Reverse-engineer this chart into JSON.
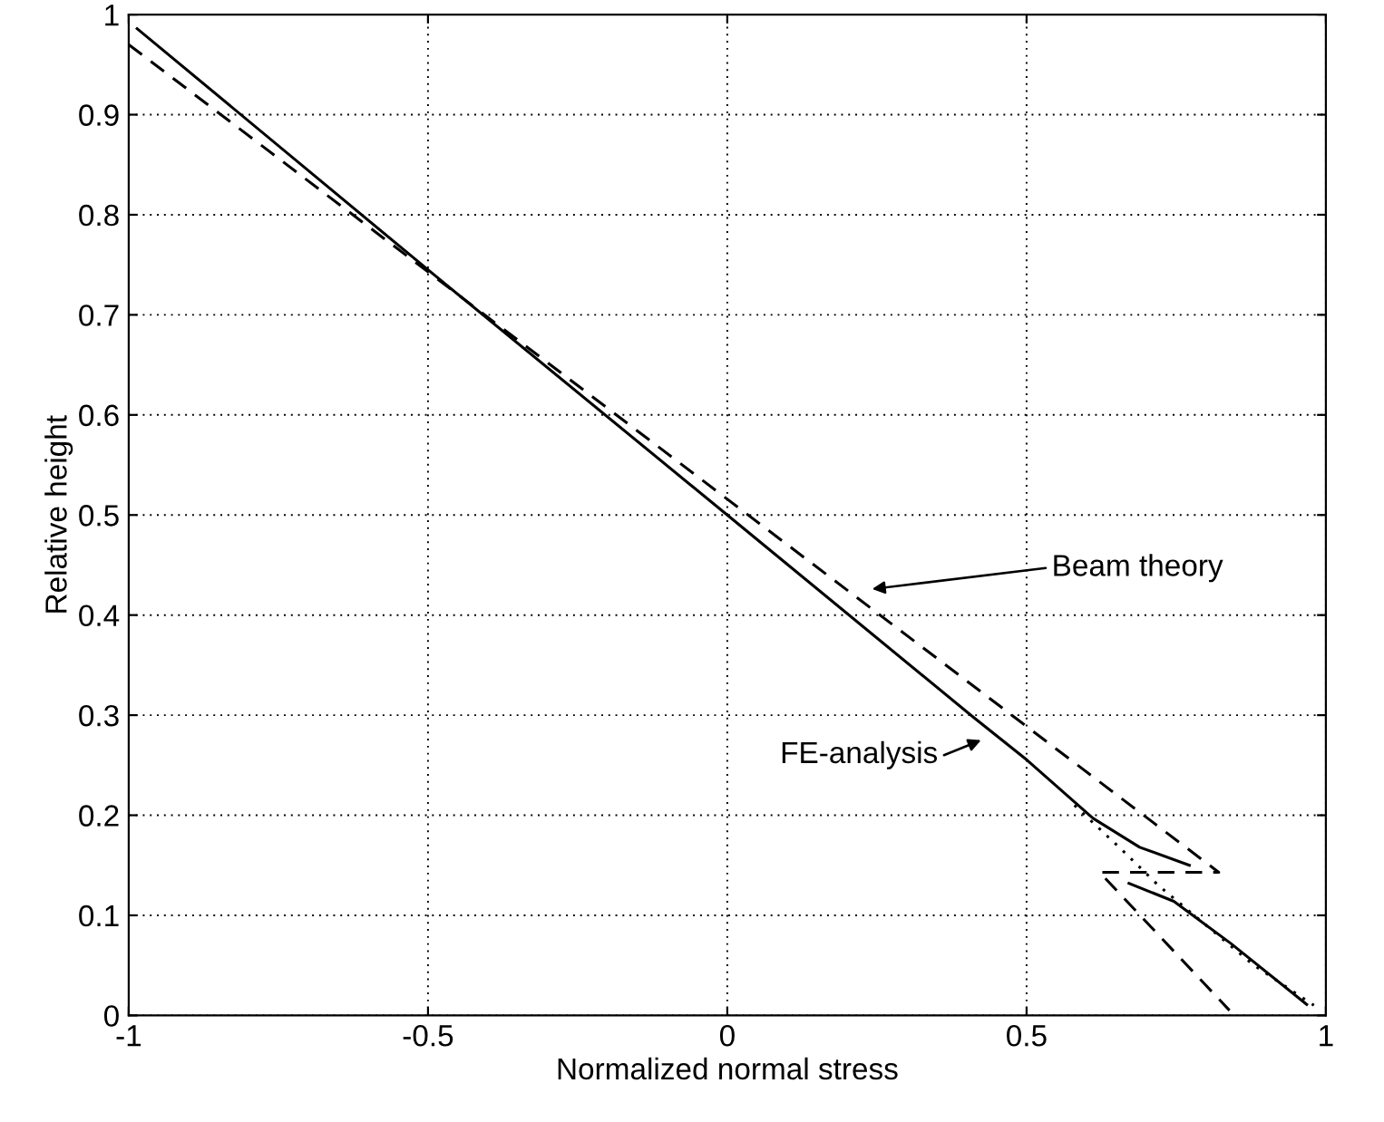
{
  "chart_data": {
    "type": "line",
    "xlabel": "Normalized normal stress",
    "ylabel": "Relative height",
    "series": [
      {
        "color": "#000000",
        "line_style": "solid",
        "x": [
          -0.986,
          -0.5,
          0,
          0.409,
          0.501,
          0.611,
          0.689,
          0.772,
          null,
          0.671,
          0.746,
          0.841,
          0.968
        ],
        "values": [
          0.986,
          0.745,
          0.5,
          0.299,
          0.255,
          0.197,
          0.168,
          0.15,
          null,
          0.132,
          0.114,
          0.072,
          0.011
        ]
      },
      {
        "color": "#000000",
        "line_style": "dashed",
        "x": [
          -1,
          0.821,
          0.622,
          0.839
        ],
        "values": [
          0.97,
          0.143,
          0.143,
          0.005
        ]
      },
      {
        "color": "#000000",
        "line_style": "dotted",
        "x": [
          0.58,
          0.66,
          0.72,
          0.8,
          0.88,
          0.98
        ],
        "values": [
          0.21,
          0.165,
          0.13,
          0.09,
          0.05,
          0.01
        ]
      }
    ],
    "annotations": [
      "Beam theory",
      "FE-analysis"
    ],
    "xlim": [
      -1,
      1
    ],
    "xticks": [
      -1,
      -0.5,
      0,
      0.5,
      1
    ],
    "ylim": [
      0,
      1
    ],
    "yticks": [
      0,
      0.1,
      0.2,
      0.3,
      0.4,
      0.5,
      0.6,
      0.7,
      0.8,
      0.9,
      1
    ],
    "grid": true,
    "marker": "none"
  }
}
